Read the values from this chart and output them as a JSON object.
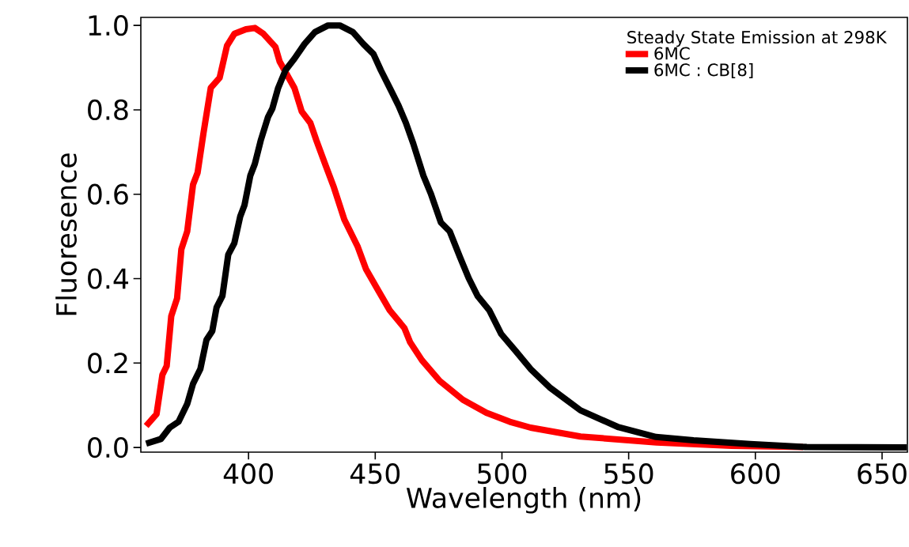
{
  "chart_data": {
    "type": "line",
    "xlabel": "Wavelength (nm)",
    "ylabel": "Fluoresence",
    "legend_title": "Steady State Emission at 298K",
    "legend": "top right",
    "xlim": [
      357.5,
      660
    ],
    "ylim": [
      -0.011,
      1.019
    ],
    "xticks": [
      400,
      450,
      500,
      550,
      600,
      650
    ],
    "yticks": [
      {
        "value": 0,
        "label": "0.0"
      },
      {
        "value": 0.2,
        "label": "0.2"
      },
      {
        "value": 0.4,
        "label": "0.4"
      },
      {
        "value": 0.6,
        "label": "0.6"
      },
      {
        "value": 0.8,
        "label": "0.8"
      },
      {
        "value": 1.0,
        "label": "1.0"
      }
    ],
    "series": [
      {
        "name": "6MC",
        "color": "#ff0000",
        "x": [
          359.6,
          363.7,
          366.0,
          367.7,
          369.5,
          371.8,
          373.5,
          375.8,
          378.1,
          379.9,
          382.2,
          385.1,
          388.6,
          391.5,
          394.4,
          399.0,
          402.5,
          405.9,
          410.6,
          412.3,
          418.1,
          421.0,
          424.4,
          426.8,
          430.2,
          433.7,
          437.8,
          443.0,
          446.4,
          451.1,
          455.7,
          461.5,
          463.8,
          468.4,
          475.4,
          484.6,
          493.9,
          503.1,
          511.3,
          531.0,
          561.0,
          590.6,
          618.8
        ],
        "values": [
          0.051,
          0.079,
          0.172,
          0.193,
          0.311,
          0.353,
          0.47,
          0.512,
          0.623,
          0.651,
          0.744,
          0.852,
          0.876,
          0.952,
          0.98,
          0.991,
          0.994,
          0.98,
          0.949,
          0.914,
          0.852,
          0.796,
          0.769,
          0.727,
          0.672,
          0.616,
          0.54,
          0.477,
          0.422,
          0.373,
          0.325,
          0.283,
          0.249,
          0.207,
          0.158,
          0.113,
          0.082,
          0.061,
          0.047,
          0.026,
          0.012,
          0.004,
          0.001
        ]
      },
      {
        "name": "6MC : CB[8]",
        "color": "#000000",
        "x": [
          359.6,
          365.4,
          368.9,
          372.4,
          375.8,
          378.1,
          381.0,
          383.4,
          385.7,
          387.4,
          389.7,
          392.0,
          394.4,
          396.7,
          398.4,
          400.7,
          402.5,
          404.8,
          407.7,
          409.4,
          411.7,
          414.6,
          418.1,
          422.1,
          426.2,
          431.4,
          436.0,
          441.2,
          445.3,
          449.3,
          452.2,
          456.3,
          459.2,
          462.1,
          465.0,
          469.0,
          471.9,
          475.9,
          479.4,
          483.5,
          486.9,
          490.4,
          495.0,
          499.7,
          505.5,
          511.3,
          519.1,
          531.0,
          546.0,
          560.8,
          575.6,
          598.0,
          620.3,
          659.7
        ],
        "values": [
          0.009,
          0.02,
          0.047,
          0.061,
          0.103,
          0.151,
          0.186,
          0.255,
          0.276,
          0.332,
          0.359,
          0.457,
          0.484,
          0.547,
          0.574,
          0.644,
          0.672,
          0.727,
          0.783,
          0.803,
          0.852,
          0.894,
          0.921,
          0.956,
          0.984,
          1.0,
          1.0,
          0.984,
          0.956,
          0.932,
          0.894,
          0.845,
          0.81,
          0.769,
          0.72,
          0.644,
          0.602,
          0.533,
          0.512,
          0.45,
          0.401,
          0.359,
          0.325,
          0.269,
          0.228,
          0.186,
          0.141,
          0.088,
          0.048,
          0.025,
          0.017,
          0.008,
          0.001,
          0.0
        ]
      }
    ]
  }
}
